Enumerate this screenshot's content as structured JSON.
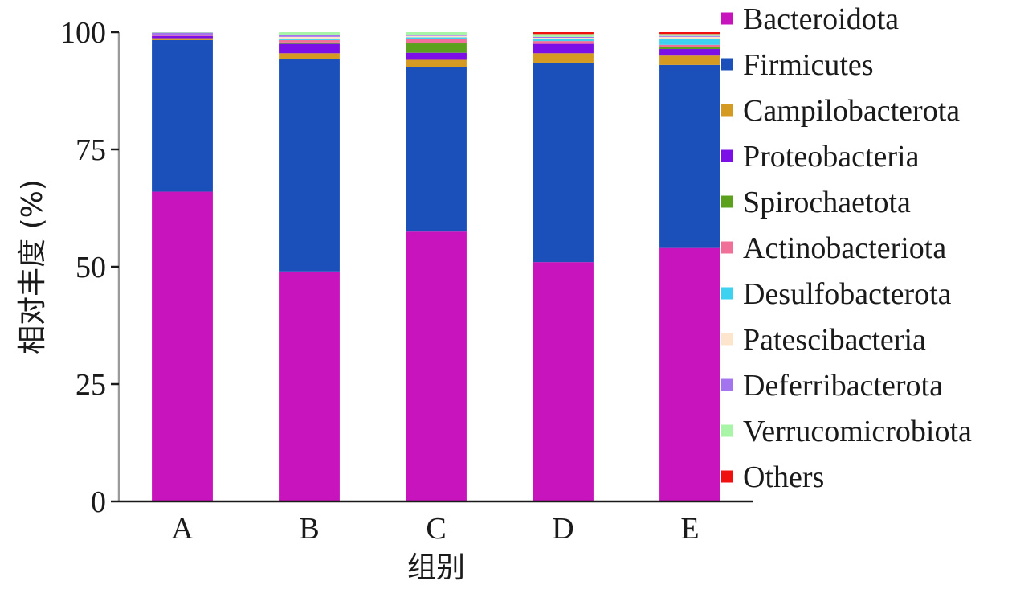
{
  "chart_data": {
    "type": "bar",
    "stacked": true,
    "title": "",
    "xlabel": "组别",
    "ylabel": "相对丰度 (%)",
    "ylim": [
      0,
      100
    ],
    "yticks": [
      0,
      25,
      50,
      75,
      100
    ],
    "categories": [
      "A",
      "B",
      "C",
      "D",
      "E"
    ],
    "legend_position": "right",
    "series": [
      {
        "name": "Bacteroidota",
        "color": "#C814BC",
        "values": [
          66.0,
          49.0,
          57.5,
          51.0,
          54.0
        ]
      },
      {
        "name": "Firmicutes",
        "color": "#1B4FBA",
        "values": [
          32.3,
          45.2,
          35.0,
          42.5,
          39.0
        ]
      },
      {
        "name": "Campilobacterota",
        "color": "#D49A22",
        "values": [
          0.4,
          1.3,
          1.6,
          2.0,
          2.0
        ]
      },
      {
        "name": "Proteobacteria",
        "color": "#7B0FE6",
        "values": [
          0.5,
          2.0,
          1.5,
          2.0,
          1.4
        ]
      },
      {
        "name": "Spirochaetota",
        "color": "#5BA11E",
        "values": [
          0.0,
          0.3,
          2.0,
          0.0,
          0.4
        ]
      },
      {
        "name": "Actinobacteriota",
        "color": "#F0709A",
        "values": [
          0.1,
          0.5,
          1.0,
          0.6,
          0.5
        ]
      },
      {
        "name": "Desulfobacterota",
        "color": "#3FD1F0",
        "values": [
          0.0,
          0.3,
          0.3,
          0.5,
          1.3
        ]
      },
      {
        "name": "Patescibacteria",
        "color": "#FDE4CC",
        "values": [
          0.0,
          0.4,
          0.3,
          0.2,
          0.4
        ]
      },
      {
        "name": "Deferribacterota",
        "color": "#A474EE",
        "values": [
          0.6,
          0.4,
          0.2,
          0.2,
          0.2
        ]
      },
      {
        "name": "Verrucomicrobiota",
        "color": "#A8F5A8",
        "values": [
          0.1,
          0.6,
          0.6,
          0.6,
          0.4
        ]
      },
      {
        "name": "Others",
        "color": "#F01010",
        "values": [
          0.0,
          0.0,
          0.0,
          0.4,
          0.4
        ]
      }
    ]
  }
}
